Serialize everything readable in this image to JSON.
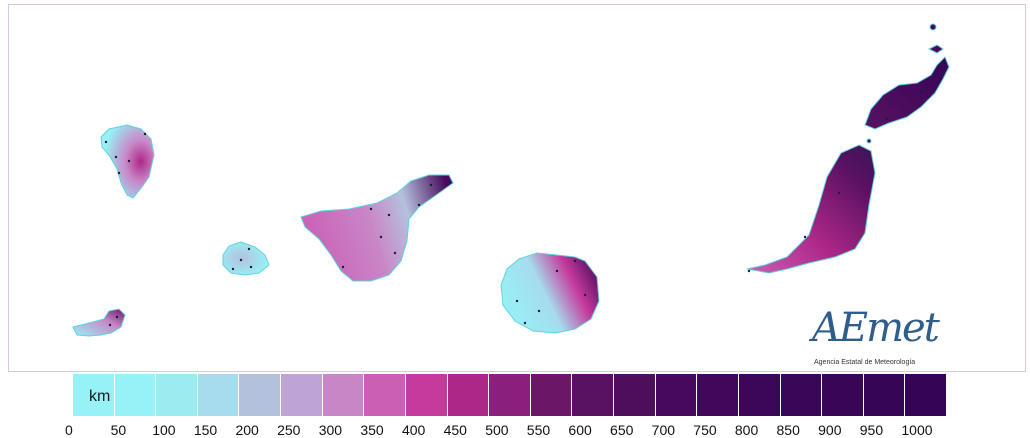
{
  "legend": {
    "unit": "km",
    "ticks": [
      "0",
      "50",
      "100",
      "150",
      "200",
      "250",
      "300",
      "350",
      "400",
      "450",
      "500",
      "550",
      "600",
      "650",
      "700",
      "750",
      "800",
      "850",
      "900",
      "950",
      "1000"
    ],
    "colors": [
      "#96f2f7",
      "#96f2f7",
      "#9cebf1",
      "#a6dced",
      "#b4c1dd",
      "#bea4d6",
      "#c986c7",
      "#ca5fb4",
      "#c63a9e",
      "#ad2788",
      "#8b1f7c",
      "#6c1668",
      "#591162",
      "#4e0e5c",
      "#47095b",
      "#41085a",
      "#3c0758",
      "#3a0656",
      "#390655",
      "#360554",
      "#350456"
    ]
  },
  "logo": {
    "brand": "AEmet",
    "subtitle": "Agencia Estatal de Meteorología"
  },
  "islands": [
    {
      "name": "la-palma",
      "fill": "#a6dced",
      "accent": "#c63a9e"
    },
    {
      "name": "la-gomera",
      "fill": "#96f2f7",
      "accent": "#b4c1dd"
    },
    {
      "name": "el-hierro",
      "fill": "#96f2f7",
      "accent": "#6c1668"
    },
    {
      "name": "tenerife",
      "fill": "#c986c7",
      "accent": "#47095b"
    },
    {
      "name": "gran-canaria",
      "fill": "#96f2f7",
      "accent": "#8b1f7c"
    },
    {
      "name": "fuerteventura",
      "fill": "#8b1f7c",
      "accent": "#391655"
    },
    {
      "name": "lanzarote",
      "fill": "#47095b",
      "accent": "#350456"
    }
  ]
}
